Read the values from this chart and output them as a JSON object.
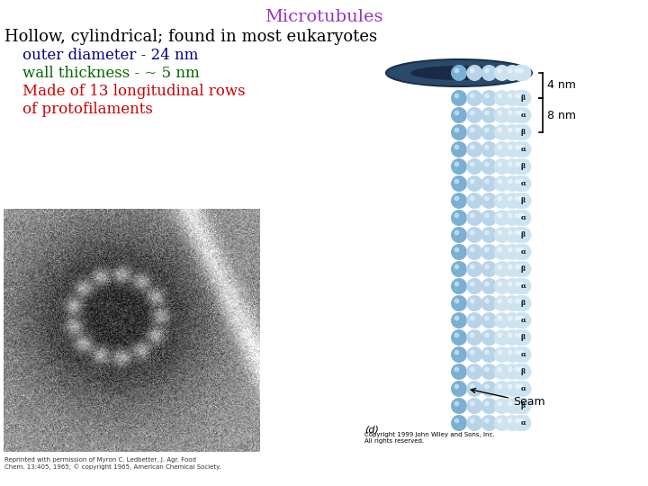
{
  "title": "Microtubules",
  "title_color": "#9933cc",
  "title_fontsize": 14,
  "line1": "Hollow, cylindrical; found in most eukaryotes",
  "line1_color": "#000000",
  "line1_fontsize": 13,
  "line2": "outer diameter - 24 nm",
  "line2_color": "#000080",
  "line2_fontsize": 12,
  "line3": "wall thickness - ~ 5 nm",
  "line3_color": "#006600",
  "line3_fontsize": 12,
  "line4a": "Made of 13 longitudinal rows",
  "line4b": "of protofilaments",
  "line4_color": "#cc0000",
  "line4_fontsize": 12,
  "bg_color": "#ffffff",
  "caption_d": "(d)",
  "caption_4nm": "4 nm",
  "caption_8nm": "8 nm",
  "seam_label": "Seam",
  "copyright": "Copyright 1999 John Wiley and Sons, Inc.\nAll rights reserved.",
  "em_caption": "Reprinted with permission of Myron C. Ledbetter, J. Agr. Food\nChem. 13:405, 1965; © copyright 1965, American Chemical Society.",
  "figure_width": 7.2,
  "figure_height": 5.4,
  "dpi": 100,
  "dark_col": "#4a6885",
  "mid_col": "#7ab0d4",
  "light_col": "#b8d4e8",
  "very_light_col": "#cde4f0",
  "top_cap_color": "#2a4a6a",
  "top_inner_color": "#1a2a45",
  "greek_alpha": "α",
  "greek_beta": "β"
}
